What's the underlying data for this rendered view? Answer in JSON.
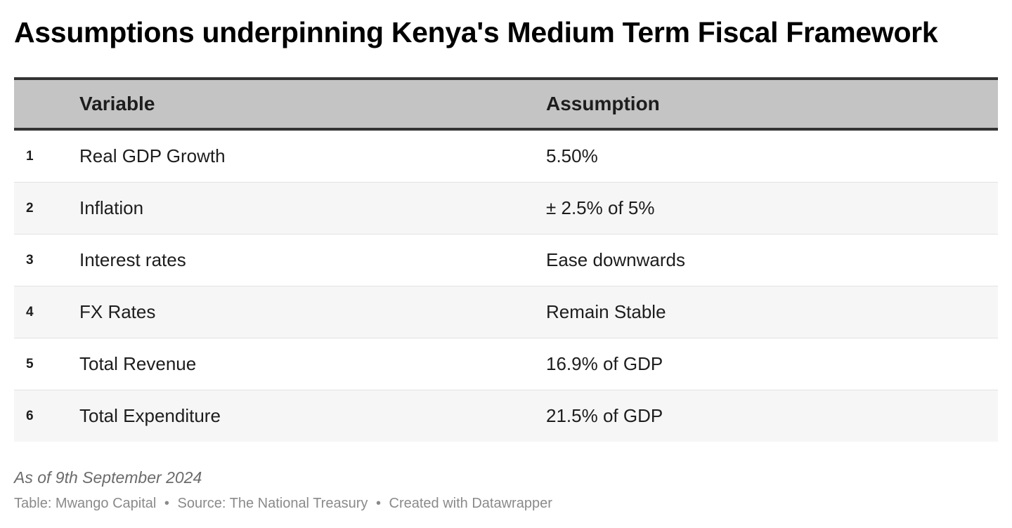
{
  "title": "Assumptions underpinning Kenya's Medium Term Fiscal Framework",
  "table": {
    "columns": [
      "",
      "Variable",
      "Assumption"
    ],
    "rows": [
      {
        "num": "1",
        "variable": "Real GDP Growth",
        "assumption": "5.50%"
      },
      {
        "num": "2",
        "variable": "Inflation",
        "assumption": "± 2.5% of 5%"
      },
      {
        "num": "3",
        "variable": "Interest rates",
        "assumption": "Ease downwards"
      },
      {
        "num": "4",
        "variable": "FX Rates",
        "assumption": "Remain Stable"
      },
      {
        "num": "5",
        "variable": "Total Revenue",
        "assumption": "16.9% of GDP"
      },
      {
        "num": "6",
        "variable": "Total Expenditure",
        "assumption": "21.5% of GDP"
      }
    ]
  },
  "note": "As of 9th September 2024",
  "footer": {
    "table_credit": "Table: Mwango Capital",
    "source": "Source: The National Treasury",
    "created_with": "Created with Datawrapper",
    "separator": "•"
  },
  "colors": {
    "header_bg": "#c4c4c4",
    "header_border": "#333333",
    "alt_row_bg": "#f6f6f6",
    "row_divider": "#e2e2e2",
    "note_text": "#6b6b6b",
    "footer_text": "#8a8a8a"
  }
}
